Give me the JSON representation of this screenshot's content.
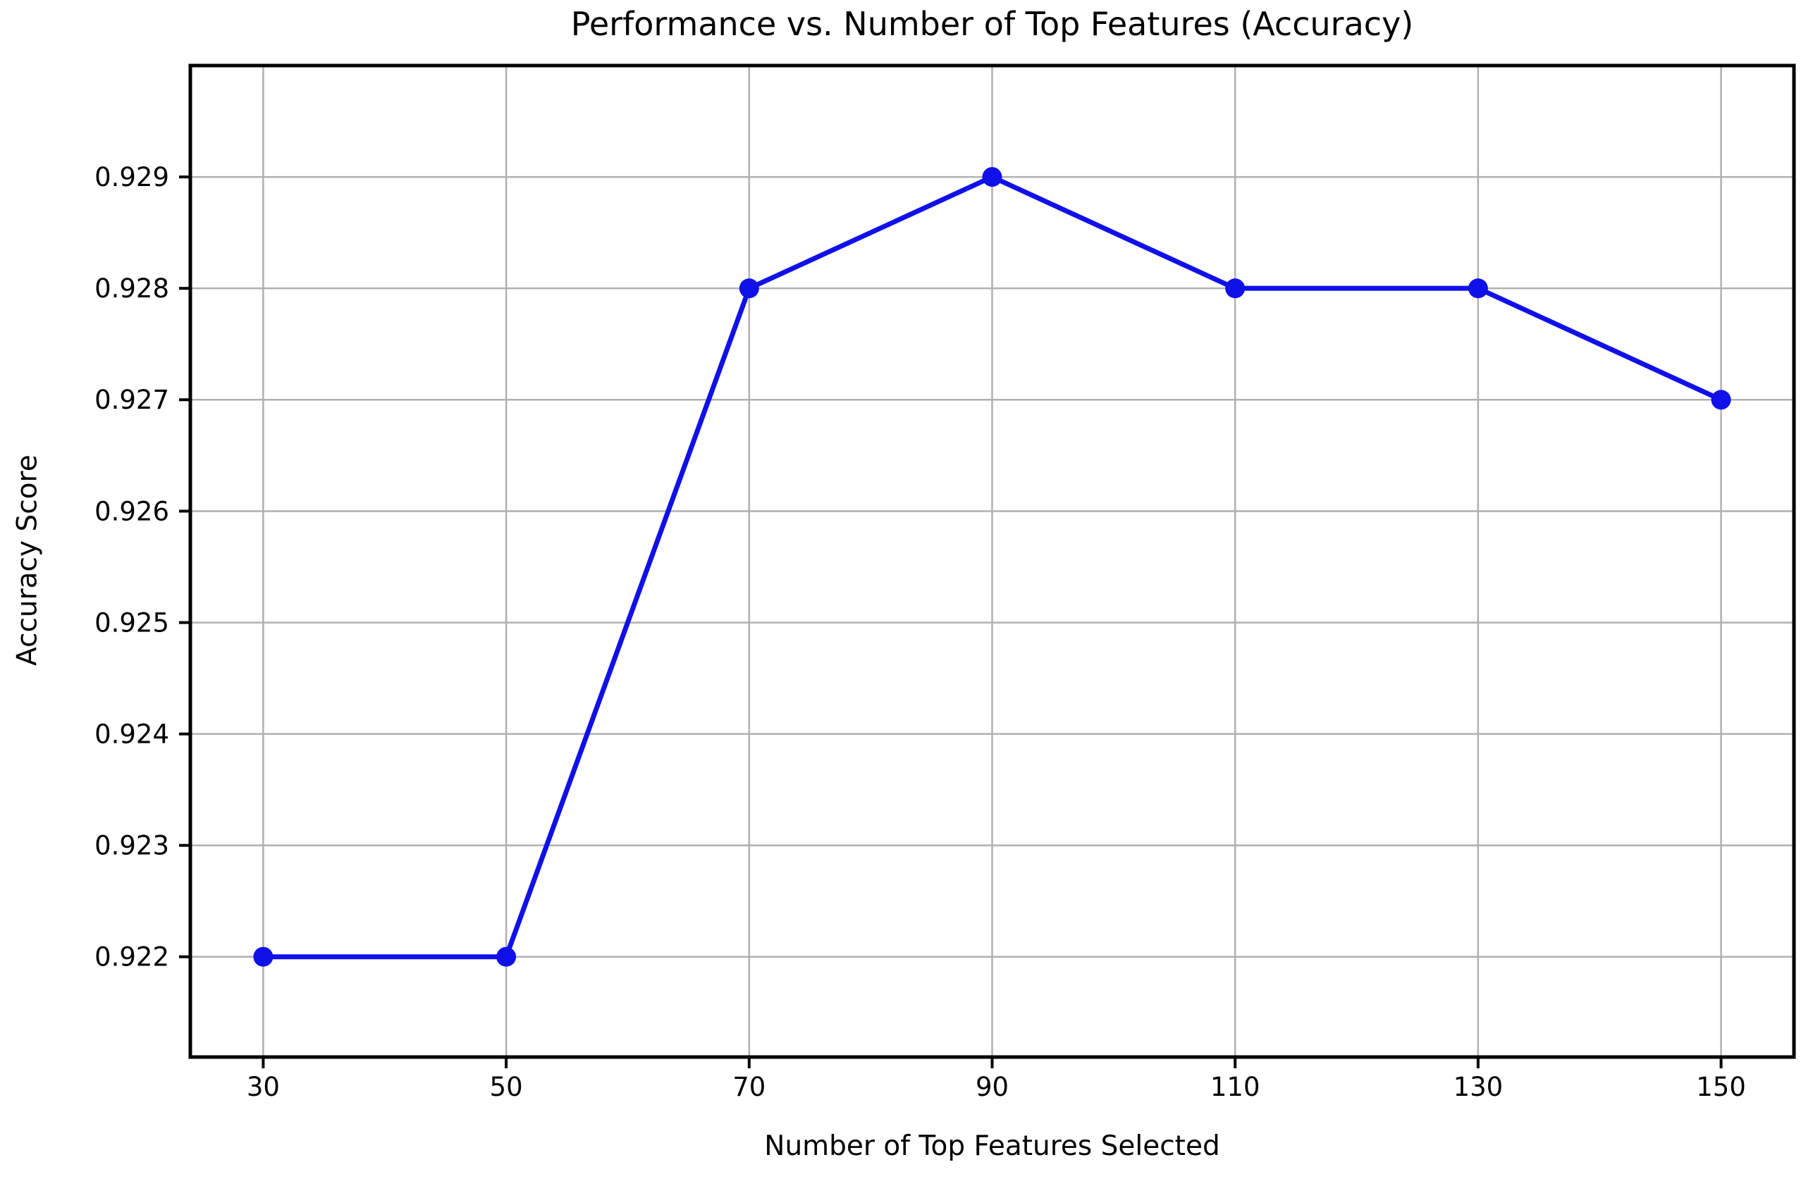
{
  "chart_data": {
    "type": "line",
    "title": "Performance vs. Number of Top Features (Accuracy)",
    "xlabel": "Number of Top Features Selected",
    "ylabel": "Accuracy Score",
    "x": [
      30,
      50,
      70,
      90,
      110,
      130,
      150
    ],
    "series": [
      {
        "name": "Accuracy",
        "values": [
          0.922,
          0.922,
          0.928,
          0.929,
          0.928,
          0.928,
          0.927
        ]
      }
    ],
    "xticks": [
      30,
      50,
      70,
      90,
      110,
      130,
      150
    ],
    "yticks": [
      0.922,
      0.923,
      0.924,
      0.925,
      0.926,
      0.927,
      0.928,
      0.929
    ],
    "ytick_decimals": 3,
    "xlim": [
      24,
      156
    ],
    "ylim": [
      0.9211,
      0.93
    ],
    "grid": true,
    "legend_position": "none",
    "colors": {
      "line": "#1010e8",
      "marker": "#1010e8",
      "grid": "#b0b0b0",
      "spine": "#000000",
      "tick": "#000000",
      "text": "#000000",
      "background": "#ffffff"
    }
  }
}
